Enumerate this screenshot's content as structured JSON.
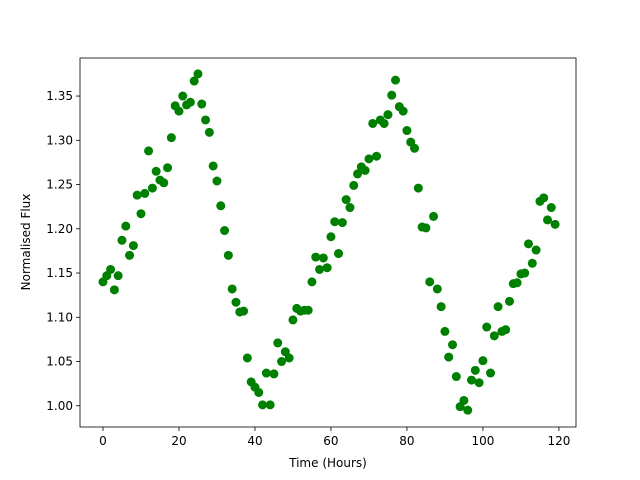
{
  "chart_data": {
    "type": "scatter",
    "x_label": "Time (Hours)",
    "y_label": "Normalised Flux",
    "series": [
      {
        "color": "#008000",
        "x": [
          0,
          1,
          2,
          3,
          4,
          5,
          6,
          7,
          8,
          9,
          10,
          11,
          12,
          13,
          14,
          15,
          16,
          17,
          18,
          19,
          20,
          21,
          22,
          23,
          24,
          25,
          26,
          27,
          28,
          29,
          30,
          31,
          32,
          33,
          34,
          35,
          36,
          37,
          38,
          39,
          40,
          41,
          42,
          43,
          44,
          45,
          46,
          47,
          48,
          49,
          50,
          51,
          52,
          53,
          54,
          55,
          56,
          57,
          58,
          59,
          60,
          61,
          62,
          63,
          64,
          65,
          66,
          67,
          68,
          69,
          70,
          71,
          72,
          73,
          74,
          75,
          76,
          77,
          78,
          79,
          80,
          81,
          82,
          83,
          84,
          85,
          86,
          87,
          88,
          89,
          90,
          91,
          92,
          93,
          94,
          95,
          96,
          97,
          98,
          99,
          100,
          101,
          102,
          103,
          104,
          105,
          106,
          107,
          108,
          109,
          110,
          111,
          112,
          113,
          114,
          115,
          116,
          117,
          118,
          119
        ],
        "values": [
          1.14,
          1.147,
          1.154,
          1.131,
          1.147,
          1.187,
          1.203,
          1.17,
          1.181,
          1.238,
          1.217,
          1.24,
          1.288,
          1.246,
          1.265,
          1.255,
          1.252,
          1.269,
          1.303,
          1.339,
          1.333,
          1.35,
          1.34,
          1.343,
          1.367,
          1.375,
          1.341,
          1.323,
          1.309,
          1.271,
          1.254,
          1.226,
          1.198,
          1.17,
          1.132,
          1.117,
          1.106,
          1.107,
          1.054,
          1.027,
          1.021,
          1.015,
          1.001,
          1.037,
          1.001,
          1.036,
          1.071,
          1.05,
          1.061,
          1.054,
          1.097,
          1.11,
          1.107,
          1.108,
          1.108,
          1.14,
          1.168,
          1.154,
          1.167,
          1.156,
          1.191,
          1.208,
          1.172,
          1.207,
          1.233,
          1.224,
          1.249,
          1.262,
          1.27,
          1.266,
          1.279,
          1.319,
          1.282,
          1.323,
          1.319,
          1.329,
          1.351,
          1.368,
          1.338,
          1.333,
          1.311,
          1.298,
          1.291,
          1.246,
          1.202,
          1.201,
          1.14,
          1.214,
          1.132,
          1.112,
          1.084,
          1.055,
          1.069,
          1.033,
          0.999,
          1.006,
          0.995,
          1.029,
          1.04,
          1.026,
          1.051,
          1.089,
          1.037,
          1.079,
          1.112,
          1.084,
          1.086,
          1.118,
          1.138,
          1.139,
          1.149,
          1.15,
          1.183,
          1.161,
          1.176,
          1.231,
          1.235,
          1.21,
          1.224,
          1.205
        ]
      }
    ],
    "xlim": [
      -6.05,
      124.5
    ],
    "ylim": [
      0.976,
      1.393
    ],
    "xticks": [
      0,
      20,
      40,
      60,
      80,
      100,
      120
    ],
    "yticks": [
      {
        "value": 1,
        "label": "1.00"
      },
      1.05,
      {
        "value": 1.1,
        "label": "1.10"
      },
      1.15,
      {
        "value": 1.2,
        "label": "1.20"
      },
      1.25,
      {
        "value": 1.3,
        "label": "1.30"
      },
      1.35
    ],
    "grid": false
  }
}
